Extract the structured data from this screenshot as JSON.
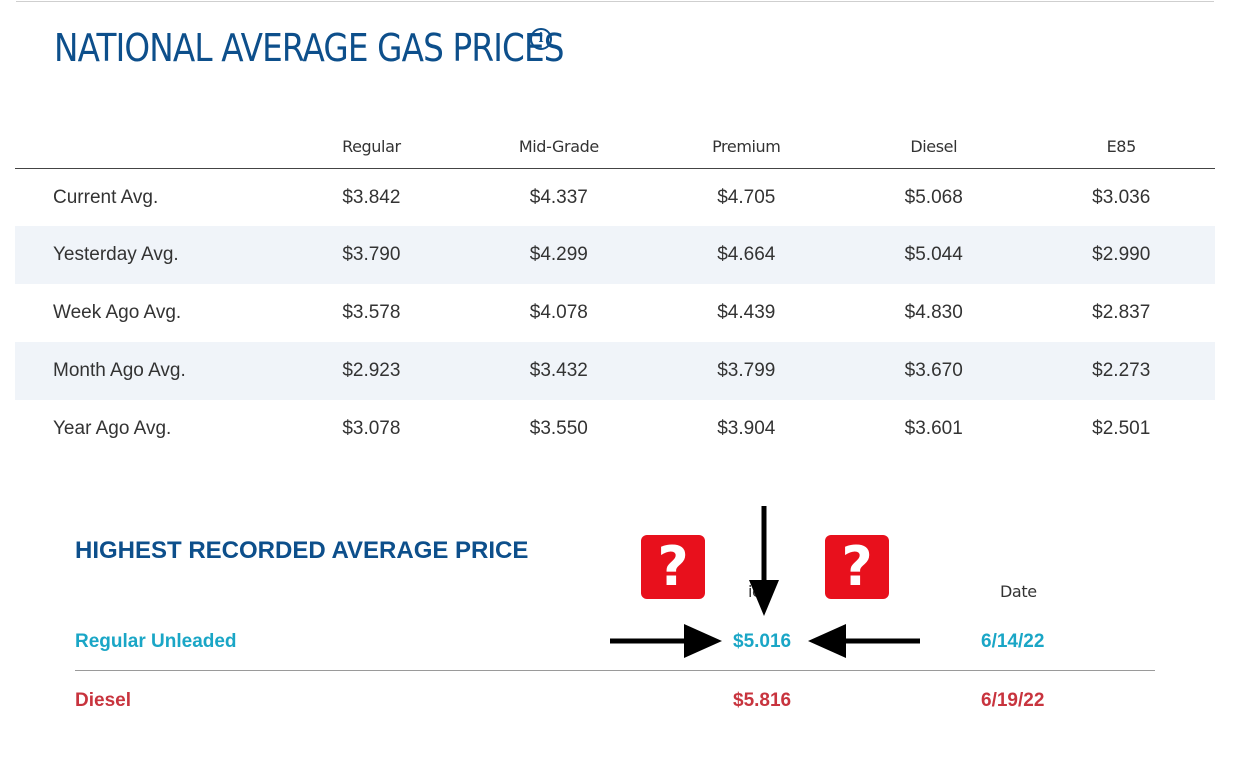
{
  "header": {
    "title": "NATIONAL AVERAGE GAS PRICES",
    "info_icon": "info-icon"
  },
  "prices": {
    "columns": [
      "Regular",
      "Mid-Grade",
      "Premium",
      "Diesel",
      "E85"
    ],
    "rows": [
      {
        "label": "Current Avg.",
        "values": [
          "$3.842",
          "$4.337",
          "$4.705",
          "$5.068",
          "$3.036"
        ]
      },
      {
        "label": "Yesterday Avg.",
        "values": [
          "$3.790",
          "$4.299",
          "$4.664",
          "$5.044",
          "$2.990"
        ]
      },
      {
        "label": "Week Ago Avg.",
        "values": [
          "$3.578",
          "$4.078",
          "$4.439",
          "$4.830",
          "$2.837"
        ]
      },
      {
        "label": "Month Ago Avg.",
        "values": [
          "$2.923",
          "$3.432",
          "$3.799",
          "$3.670",
          "$2.273"
        ]
      },
      {
        "label": "Year Ago Avg.",
        "values": [
          "$3.078",
          "$3.550",
          "$3.904",
          "$3.601",
          "$2.501"
        ]
      }
    ]
  },
  "highest": {
    "title": "HIGHEST RECORDED AVERAGE PRICE",
    "price_header": "ice",
    "date_header": "Date",
    "rows": [
      {
        "label": "Regular Unleaded",
        "price": "$5.016",
        "date": "6/14/22"
      },
      {
        "label": "Diesel",
        "price": "$5.816",
        "date": "6/19/22"
      }
    ]
  },
  "annotations": {
    "badge_left": "?",
    "badge_right": "?"
  },
  "colors": {
    "brand_blue": "#0d4f8b",
    "regular_teal": "#1aa6c6",
    "diesel_red": "#c8343e",
    "badge_red": "#e8101c",
    "row_shade": "#f0f4f9"
  }
}
